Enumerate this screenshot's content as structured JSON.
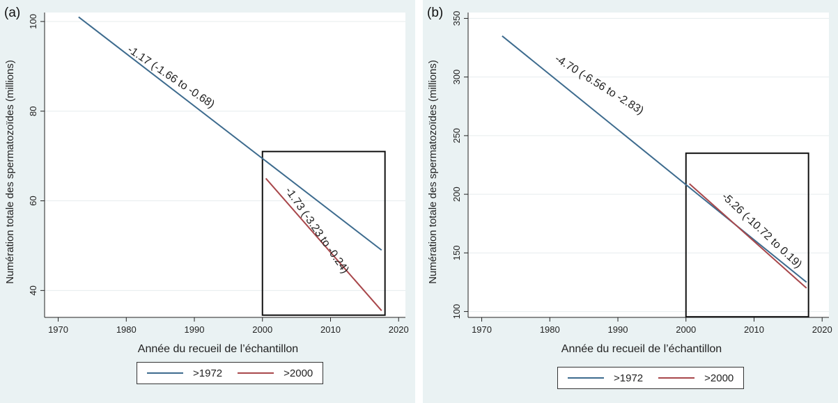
{
  "chart_data": [
    {
      "type": "line",
      "panel_label": "(a)",
      "xlabel": "Année du recueil de l’échantillon",
      "ylabel": "Numération totale des spermatozoïdes (millions)",
      "xlim": [
        1968,
        2021
      ],
      "ylim": [
        34,
        102
      ],
      "xticks": [
        1970,
        1980,
        1990,
        2000,
        2010,
        2020
      ],
      "yticks": [
        40,
        60,
        80,
        100
      ],
      "grid": true,
      "series": [
        {
          "name": ">1972",
          "color": "#3d6b8e",
          "x": [
            1973,
            2017.5
          ],
          "y": [
            101,
            49
          ]
        },
        {
          "name": ">2000",
          "color": "#a8474b",
          "x": [
            2000.5,
            2017.5
          ],
          "y": [
            65,
            35.5
          ]
        }
      ],
      "box": {
        "x": [
          2000,
          2018
        ],
        "y": [
          34.5,
          71
        ]
      },
      "annotations": [
        {
          "text": "-1.17 (-1.66 to -0.68)",
          "x": 1986.3,
          "y": 87,
          "rotate": 34
        },
        {
          "text": "-1.73 (-3.23 to -0.24)",
          "x": 2007.6,
          "y": 53,
          "rotate": 55
        }
      ],
      "legend_position": "bottom"
    },
    {
      "type": "line",
      "panel_label": "(b)",
      "xlabel": "Année du recueil de l’échantillon",
      "ylabel": "Numération totale des spermatozoïdes (millions)",
      "xlim": [
        1968,
        2021
      ],
      "ylim": [
        95,
        355
      ],
      "xticks": [
        1970,
        1980,
        1990,
        2000,
        2010,
        2020
      ],
      "yticks": [
        100,
        150,
        200,
        250,
        300,
        350
      ],
      "grid": true,
      "series": [
        {
          "name": ">1972",
          "color": "#3d6b8e",
          "x": [
            1973,
            2017.7
          ],
          "y": [
            335,
            125
          ]
        },
        {
          "name": ">2000",
          "color": "#a8474b",
          "x": [
            2000.5,
            2017.7
          ],
          "y": [
            209,
            120
          ]
        }
      ],
      "box": {
        "x": [
          2000,
          2018
        ],
        "y": [
          95.5,
          235
        ]
      },
      "annotations": [
        {
          "text": "-4.70 (-6.56 to -2.83)",
          "x": 1987,
          "y": 291,
          "rotate": 32
        },
        {
          "text": "-5.26 (-10.72 to 0.19)",
          "x": 2010.8,
          "y": 167,
          "rotate": 43
        }
      ],
      "legend_position": "bottom"
    }
  ]
}
